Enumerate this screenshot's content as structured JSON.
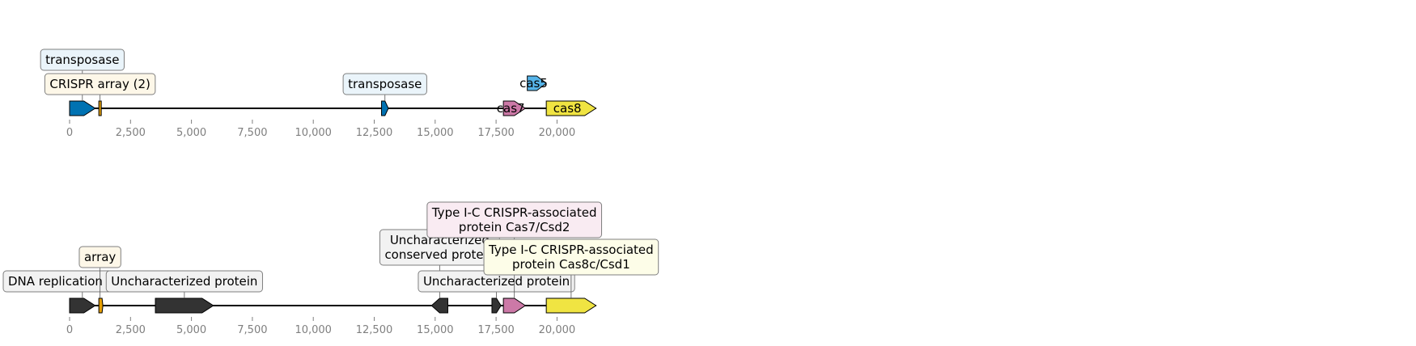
{
  "tracks": [
    {
      "id": "top",
      "axis_ticks": [
        "0",
        "2,500",
        "5,000",
        "7,500",
        "10,000",
        "12,500",
        "15,000",
        "17,500",
        "20,000"
      ],
      "features": [
        {
          "name": "gene-transposase-1",
          "start": 0,
          "end": 1050,
          "strand": 1,
          "color": "#0072b2",
          "inline_label": "",
          "label": [
            "transposase"
          ],
          "label_bg": "#eaf4fa",
          "label_level": 2
        },
        {
          "name": "crispr-array-1",
          "start": 1200,
          "end": 1300,
          "strand": 0,
          "color": "#e69f00",
          "inline_label": "",
          "label": [
            "CRISPR array (2)"
          ],
          "label_bg": "#fdf7e8",
          "label_level": 1
        },
        {
          "name": "gene-transposase-2",
          "start": 12800,
          "end": 13080,
          "strand": 1,
          "color": "#0072b2",
          "inline_label": "",
          "label": [
            "transposase"
          ],
          "label_bg": "#eaf4fa",
          "label_level": 1
        },
        {
          "name": "gene-cas7",
          "start": 17800,
          "end": 18700,
          "strand": 1,
          "color": "#cc79a7",
          "inline_label": "cas7",
          "label": [],
          "label_bg": "",
          "label_level": 0
        },
        {
          "name": "gene-cas5",
          "start": 18780,
          "end": 19560,
          "strand": 1,
          "color": "#56b4e9",
          "inline_label": "cas5",
          "label": [],
          "label_bg": "",
          "label_level": 0,
          "row": 1
        },
        {
          "name": "gene-cas8",
          "start": 19560,
          "end": 21600,
          "strand": 1,
          "color": "#f0e442",
          "inline_label": "cas8",
          "label": [],
          "label_bg": "",
          "label_level": 0
        }
      ]
    },
    {
      "id": "bottom",
      "axis_ticks": [
        "0",
        "2,500",
        "5,000",
        "7,500",
        "10,000",
        "12,500",
        "15,000",
        "17,500",
        "20,000"
      ],
      "features": [
        {
          "name": "gene-dnac",
          "start": 0,
          "end": 1050,
          "strand": 1,
          "color": "#333333",
          "inline_label": "",
          "label": [
            "DNA replication protein DnaC"
          ],
          "label_bg": "#f2f2f2",
          "label_level": 1
        },
        {
          "name": "crispr-array-2",
          "start": 1200,
          "end": 1300,
          "strand": 0,
          "color": "#e69f00",
          "inline_label": "",
          "label": [
            "array"
          ],
          "label_bg": "#fdf7e8",
          "label_level": 2
        },
        {
          "name": "gene-uncharacterized-1",
          "start": 3520,
          "end": 5900,
          "strand": 1,
          "color": "#333333",
          "inline_label": "",
          "label": [
            "Uncharacterized protein"
          ],
          "label_bg": "#f2f2f2",
          "label_level": 1
        },
        {
          "name": "gene-uncharacterized-conserved",
          "start": 14850,
          "end": 15520,
          "strand": -1,
          "color": "#333333",
          "inline_label": "",
          "label": [
            "Uncharacterized",
            "conserved protein"
          ],
          "label_bg": "#f2f2f2",
          "label_level": 3
        },
        {
          "name": "gene-uncharacterized-2",
          "start": 17330,
          "end": 17700,
          "strand": 1,
          "color": "#333333",
          "inline_label": "",
          "label": [
            "Uncharacterized protein"
          ],
          "label_bg": "#f2f2f2",
          "label_level": 1
        },
        {
          "name": "gene-cas7-csd2",
          "start": 17800,
          "end": 18700,
          "strand": 1,
          "color": "#cc79a7",
          "inline_label": "",
          "label": [
            "Type I-C CRISPR-associated",
            "protein Cas7/Csd2"
          ],
          "label_bg": "#f9ebf2",
          "label_level": 4
        },
        {
          "name": "gene-cas8c-csd1",
          "start": 19560,
          "end": 21600,
          "strand": 1,
          "color": "#f0e442",
          "inline_label": "",
          "label": [
            "Type I-C CRISPR-associated",
            "protein Cas8c/Csd1"
          ],
          "label_bg": "#fdfde8",
          "label_level": 2
        }
      ]
    }
  ]
}
